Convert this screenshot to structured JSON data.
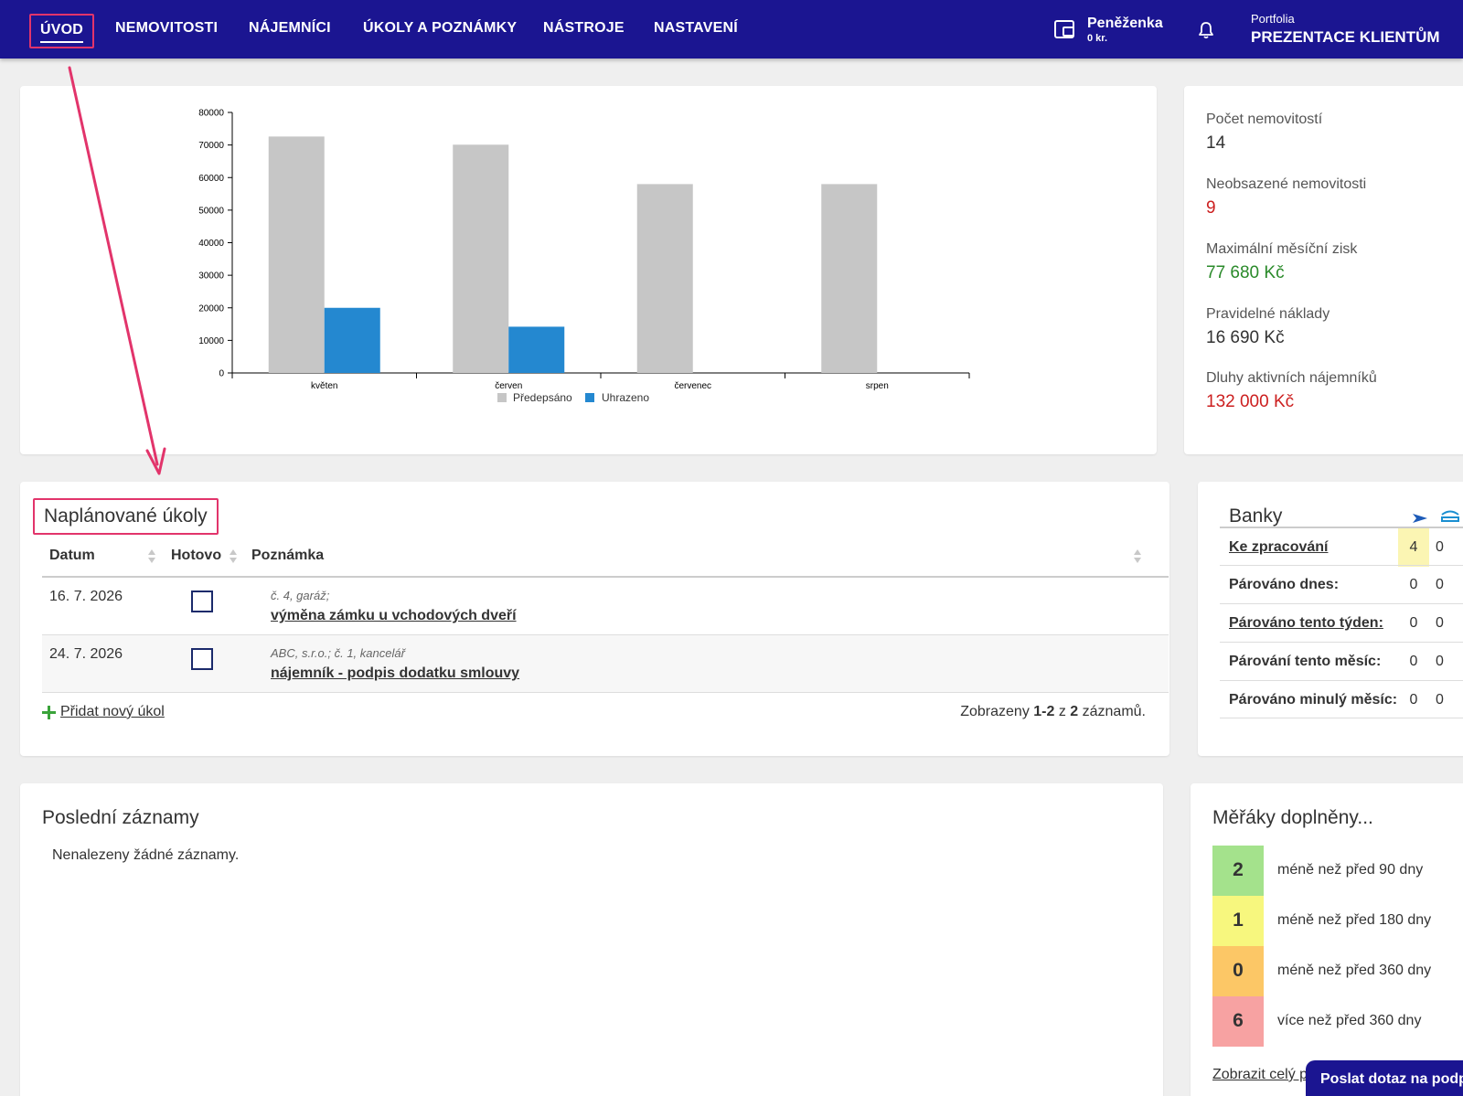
{
  "nav": {
    "items": [
      "ÚVOD",
      "NEMOVITOSTI",
      "NÁJEMNÍCI",
      "ÚKOLY A POZNÁMKY",
      "NÁSTROJE",
      "NASTAVENÍ"
    ],
    "wallet_title": "Peněženka",
    "wallet_amount": "0 kr.",
    "portfolio_label": "Portfolia",
    "portfolio_name": "PREZENTACE KLIENTŮM"
  },
  "colors": {
    "nav_bg": "#1b1591",
    "highlight": "#e2346b",
    "red": "#cc1f1f",
    "green": "#2a8a2a",
    "bar_predepsano": "#c6c6c6",
    "bar_uhrazeno": "#2488d0"
  },
  "chart_data": {
    "type": "bar",
    "categories": [
      "květen",
      "červen",
      "červenec",
      "srpen"
    ],
    "series": [
      {
        "name": "Předepsáno",
        "values": [
          72600,
          70100,
          58000,
          58000
        ]
      },
      {
        "name": "Uhrazeno",
        "values": [
          20000,
          14200,
          0,
          0
        ]
      }
    ],
    "ylim": [
      0,
      80000
    ],
    "yticks": [
      "0",
      "10000",
      "20000",
      "30000",
      "40000",
      "50000",
      "60000",
      "70000",
      "80000"
    ],
    "legend": "bottom"
  },
  "stats": [
    {
      "label": "Počet nemovitostí",
      "value": "14",
      "color": "#333333"
    },
    {
      "label": "Neobsazené nemovitosti",
      "value": "9",
      "color": "#cc1f1f"
    },
    {
      "label": "Maximální měsíční zisk",
      "value": "77 680 Kč",
      "color": "#2a8a2a"
    },
    {
      "label": "Pravidelné náklady",
      "value": "16 690 Kč",
      "color": "#333333"
    },
    {
      "label": "Dluhy aktivních nájemníků",
      "value": "132 000 Kč",
      "color": "#cc1f1f"
    }
  ],
  "tasks": {
    "title": "Naplánované úkoly",
    "columns": {
      "date": "Datum",
      "done": "Hotovo",
      "note": "Poznámka"
    },
    "rows": [
      {
        "date": "16. 7. 2026",
        "meta": "č. 4, garáž;",
        "note": "výměna zámku u vchodových dveří"
      },
      {
        "date": "24. 7. 2026",
        "meta": "ABC, s.r.o.; č. 1, kancelář",
        "note": "nájemník - podpis dodatku smlouvy"
      }
    ],
    "add_label": "Přidat nový úkol",
    "pager": {
      "prefix": "Zobrazeny ",
      "range": "1-2",
      "mid": " z ",
      "total": "2",
      "suffix": " záznamů."
    }
  },
  "banks": {
    "title": "Banky",
    "logo1": "bank-logo-arrow",
    "logo2": "csob-logo",
    "rows": [
      {
        "label": "Ke zpracování",
        "v1": "4",
        "v2": "0"
      },
      {
        "label": "Párováno dnes:",
        "v1": "0",
        "v2": "0"
      },
      {
        "label": "Párováno tento týden:",
        "v1": "0",
        "v2": "0"
      },
      {
        "label": "Párování tento měsíc:",
        "v1": "0",
        "v2": "0"
      },
      {
        "label": "Párováno minulý měsíc:",
        "v1": "0",
        "v2": "0"
      }
    ]
  },
  "recent": {
    "title": "Poslední záznamy",
    "empty": "Nenalezeny žádné záznamy."
  },
  "meters": {
    "title": "Měřáky doplněny...",
    "items": [
      {
        "value": "2",
        "label": "méně než před 90 dny",
        "color": "#a4e28c"
      },
      {
        "value": "1",
        "label": "méně než před 180 dny",
        "color": "#f7f77e"
      },
      {
        "value": "0",
        "label": "méně než před 360 dny",
        "color": "#fcc766"
      },
      {
        "value": "6",
        "label": "více než před 360 dny",
        "color": "#f7a2a2"
      }
    ],
    "link": "Zobrazit celý p"
  },
  "help_button": "Poslat dotaz na podporu"
}
